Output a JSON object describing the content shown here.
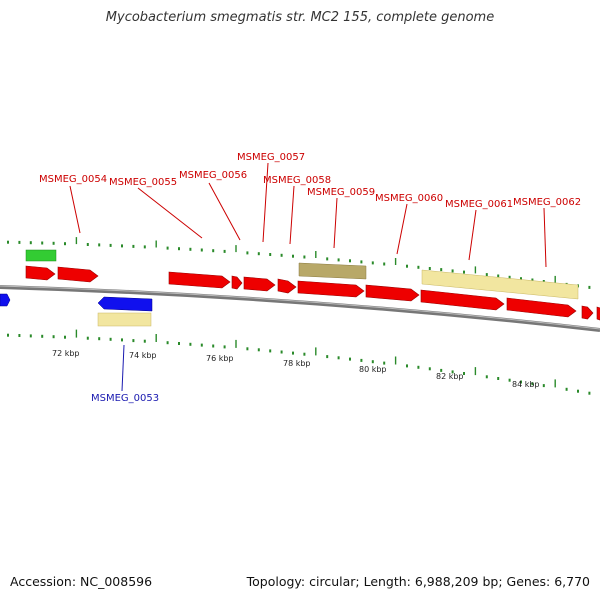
{
  "title": "Mycobacterium smegmatis str. MC2 155, complete genome",
  "footer": {
    "accession": "Accession: NC_008596",
    "summary": "Topology: circular; Length: 6,988,209 bp; Genes: 6,770"
  },
  "colors": {
    "cds": "#ee0000",
    "reverse_cds": "#1010ee",
    "rna": "#33cc33",
    "region_pale": "#f2e6a0",
    "region_olive": "#b8a868",
    "backbone": "#777777",
    "tick": "#2a8a2a",
    "label_forward": "#cc0000",
    "label_reverse": "#1a1ab0"
  },
  "ruler_labels": [
    "72 kbp",
    "74 kbp",
    "76 kbp",
    "78 kbp",
    "80 kbp",
    "82 kbp",
    "84 kbp"
  ],
  "gene_labels_forward": [
    "MSMEG_0054",
    "MSMEG_0055",
    "MSMEG_0056",
    "MSMEG_0057",
    "MSMEG_0058",
    "MSMEG_0059",
    "MSMEG_0060",
    "MSMEG_0061",
    "MSMEG_0062"
  ],
  "gene_labels_reverse": [
    "MSMEG_0053"
  ]
}
